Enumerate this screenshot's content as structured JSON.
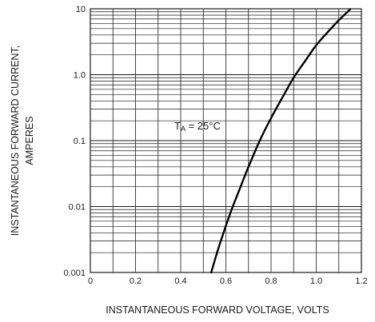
{
  "chart_data": {
    "type": "line",
    "xlabel": "INSTANTANEOUS FORWARD VOLTAGE, VOLTS",
    "ylabel_line1": "INSTANTANEOUS FORWARD CURRENT,",
    "ylabel_line2": "AMPERES",
    "xlim": [
      0,
      1.2
    ],
    "ylim": [
      0.001,
      10
    ],
    "yscale": "log",
    "grid": true,
    "x_ticks": [
      "0",
      "0.2",
      "0.4",
      "0.6",
      "0.8",
      "1.0",
      "1.2"
    ],
    "x_tick_values": [
      0,
      0.2,
      0.4,
      0.6,
      0.8,
      1.0,
      1.2
    ],
    "y_ticks": [
      "0.001",
      "0.01",
      "0.1",
      "1.0",
      "10"
    ],
    "y_tick_values": [
      0.001,
      0.01,
      0.1,
      1.0,
      10
    ],
    "annotation": {
      "prefix": "T",
      "subscript": "A",
      "rest": " = 25°C"
    },
    "series": [
      {
        "color": "#000000",
        "x": [
          0.535,
          0.57,
          0.62,
          0.66,
          0.7,
          0.75,
          0.8,
          0.85,
          0.9,
          0.95,
          1.0,
          1.05,
          1.1,
          1.15
        ],
        "y": [
          0.001,
          0.0025,
          0.008,
          0.018,
          0.04,
          0.1,
          0.22,
          0.45,
          0.9,
          1.6,
          2.8,
          4.4,
          6.7,
          9.8
        ]
      }
    ]
  }
}
